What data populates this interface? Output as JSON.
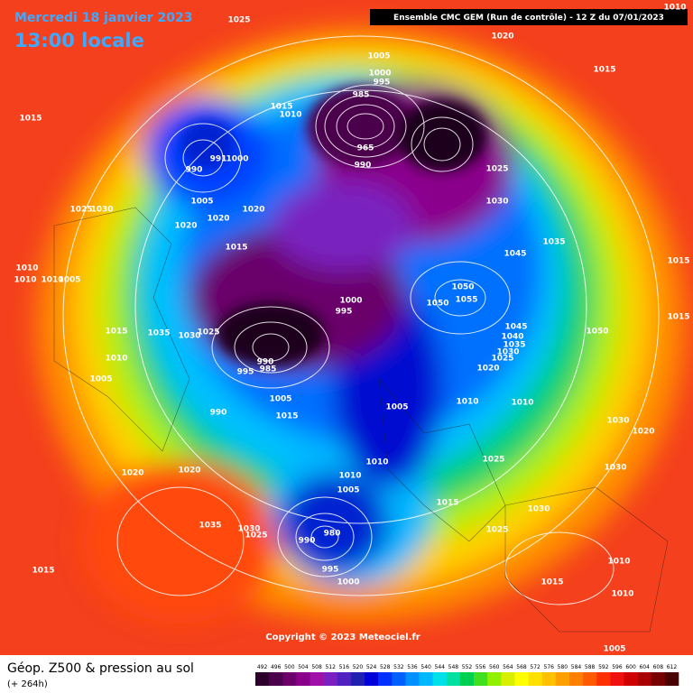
{
  "header": {
    "date": "Mercredi 18 janvier 2023",
    "time": "13:00 locale",
    "model": "Ensemble CMC GEM  (Run de contrôle)  -  12 Z du 07/01/2023"
  },
  "footer": {
    "title": "Géop. Z500 & pression au sol",
    "subtitle": "(+ 264h)",
    "copyright": "Copyright © 2023 Meteociel.fr"
  },
  "legend": {
    "levels": [
      492,
      496,
      500,
      504,
      508,
      512,
      516,
      520,
      524,
      528,
      532,
      536,
      540,
      544,
      548,
      552,
      556,
      560,
      564,
      568,
      572,
      576,
      580,
      584,
      588,
      592,
      596,
      600,
      604,
      608,
      612
    ],
    "colors": [
      "#2b002b",
      "#4b004b",
      "#6b006b",
      "#8b008b",
      "#a010a8",
      "#7a20c0",
      "#5020c0",
      "#2020b0",
      "#0000d8",
      "#0030ff",
      "#0060ff",
      "#0090ff",
      "#00b8ff",
      "#00e0e8",
      "#00e0a0",
      "#00d050",
      "#40e020",
      "#90f000",
      "#d8f000",
      "#ffff00",
      "#ffe000",
      "#ffc000",
      "#ffa000",
      "#ff8000",
      "#ff5a00",
      "#ff3000",
      "#f01010",
      "#d00000",
      "#a80000",
      "#780000",
      "#480000"
    ]
  },
  "pressure_labels": [
    "1025",
    "1020",
    "1015",
    "1015",
    "1005",
    "1000",
    "995",
    "985",
    "1015",
    "1010",
    "990",
    "991",
    "1000",
    "965",
    "990",
    "1025",
    "1030",
    "1005",
    "1020",
    "1020",
    "1020",
    "1025",
    "1030",
    "1015",
    "1035",
    "1045",
    "1010",
    "1010",
    "1010",
    "1005",
    "1050",
    "1055",
    "1050",
    "1000",
    "995",
    "1035",
    "1030",
    "1025",
    "1045",
    "1040",
    "1035",
    "1030",
    "1025",
    "1020",
    "1050",
    "1015",
    "1015",
    "1010",
    "990",
    "985",
    "995",
    "1005",
    "1005",
    "1005",
    "1010",
    "1010",
    "990",
    "1015",
    "1030",
    "1020",
    "1025",
    "1030",
    "1020",
    "1020",
    "1010",
    "1010",
    "1005",
    "1015",
    "1030",
    "1035",
    "1030",
    "1025",
    "1025",
    "990",
    "980",
    "995",
    "1000",
    "1015",
    "1015",
    "1010",
    "1010",
    "1005",
    "1010",
    "1015"
  ]
}
